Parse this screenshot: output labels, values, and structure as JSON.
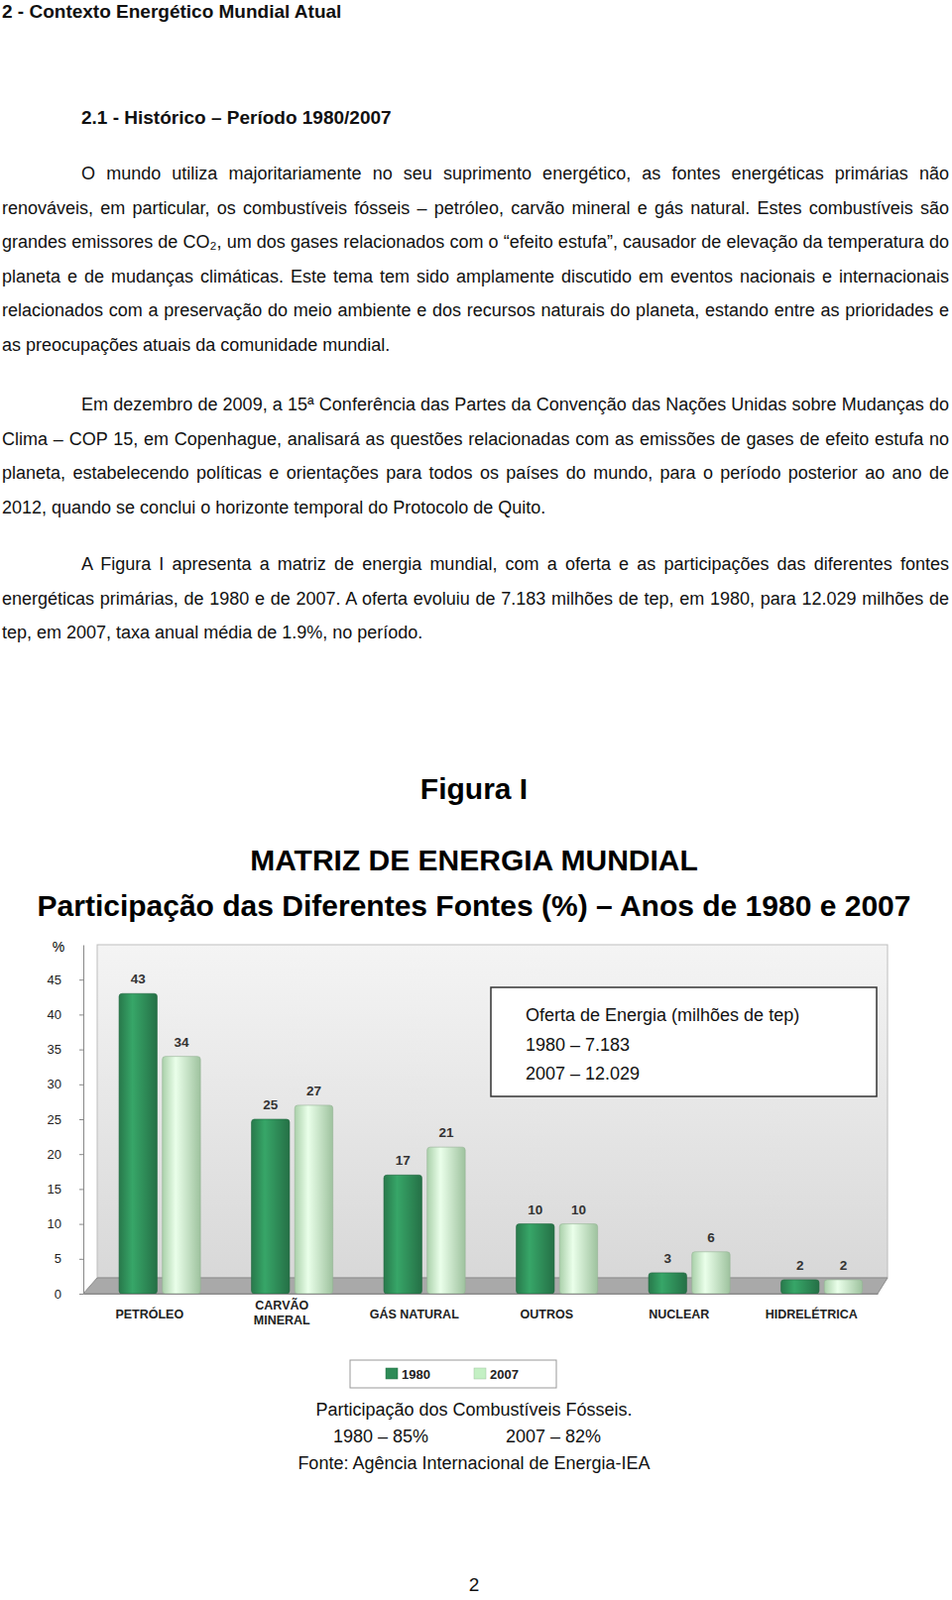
{
  "document": {
    "section": "2 - Contexto Energético Mundial Atual",
    "subsection": "2.1 - Histórico – Período 1980/2007",
    "paragraphs": [
      "O mundo utiliza majoritariamente no seu suprimento energético, as fontes energéticas primárias não renováveis, em particular, os combustíveis fósseis – petróleo, carvão mineral e gás natural. Estes combustíveis são grandes emissores de CO₂, um dos gases relacionados com o “efeito estufa”, causador de elevação da temperatura do planeta e de mudanças climáticas. Este tema tem sido amplamente discutido em eventos nacionais e internacionais relacionados com a preservação do meio ambiente e dos recursos naturais do planeta, estando entre as prioridades e as preocupações atuais da comunidade mundial.",
      "Em dezembro de 2009, a 15ª Conferência das Partes da Convenção das Nações Unidas sobre Mudanças do Clima – COP 15, em Copenhague, analisará as questões relacionadas com as emissões de gases de efeito estufa no planeta, estabelecendo políticas e orientações para todos os países do mundo, para o período posterior ao ano de 2012, quando se conclui o horizonte temporal do Protocolo de Quito.",
      "A Figura I apresenta a matriz de energia mundial, com a oferta e as participações das diferentes fontes energéticas primárias, de 1980 e de 2007. A oferta evoluiu de 7.183 milhões de tep, em 1980, para 12.029 milhões de tep, em 2007, taxa anual média de 1.9%, no período."
    ],
    "figure_label": "Figura I",
    "page_number": "2"
  },
  "chart_data": {
    "type": "bar",
    "title": "MATRIZ DE ENERGIA MUNDIAL",
    "subtitle": "Participação das Diferentes Fontes (%) – Anos de 1980 e 2007",
    "y_label": "%",
    "categories": [
      "PETRÓLEO",
      "CARVÃO MINERAL",
      "GÁS NATURAL",
      "OUTROS",
      "NUCLEAR",
      "HIDRELÉTRICA"
    ],
    "series": [
      {
        "name": "1980",
        "color": "#2e8b57",
        "values": [
          43,
          25,
          17,
          10,
          3,
          2
        ]
      },
      {
        "name": "2007",
        "color": "#c4f0c4",
        "values": [
          34,
          27,
          21,
          10,
          6,
          2
        ]
      }
    ],
    "ylim": [
      0,
      50
    ],
    "yticks": [
      0,
      5,
      10,
      15,
      20,
      25,
      30,
      35,
      40,
      45
    ],
    "grid": false,
    "legend": "bottom",
    "data_labels": true,
    "annotations": [
      [
        "Oferta de Energia (milhões de tep)",
        "1980 – 7.183",
        "2007 – 12.029"
      ],
      [
        "Participação dos Combustíveis Fósseis.",
        "1980 – 85%",
        "2007 – 82%",
        "Fonte: Agência Internacional de Energia-IEA"
      ]
    ]
  }
}
